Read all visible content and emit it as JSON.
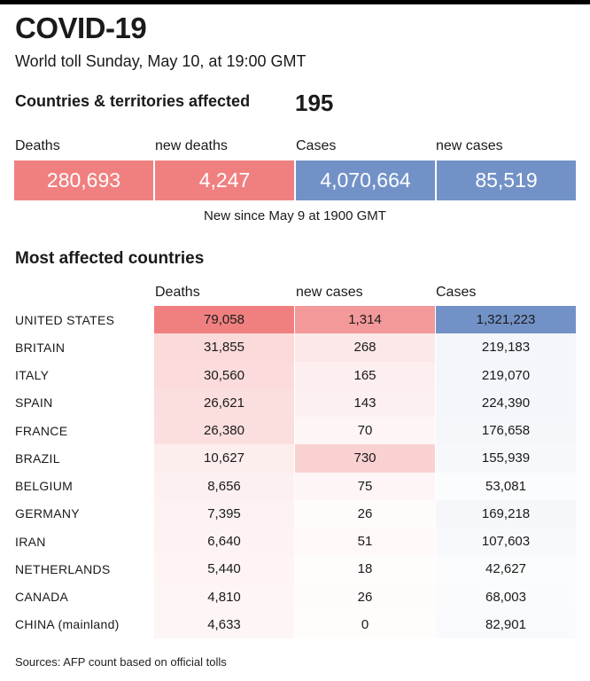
{
  "header": {
    "title": "COVID-19",
    "subtitle": "World toll Sunday, May 10, at 19:00 GMT"
  },
  "affected": {
    "label": "Countries & territories affected",
    "value": "195"
  },
  "stats": [
    {
      "label": "Deaths",
      "value": "280,693",
      "color": "#f08080"
    },
    {
      "label": "new deaths",
      "value": "4,247",
      "color": "#f08080"
    },
    {
      "label": "Cases",
      "value": "4,070,664",
      "color": "#7292c7"
    },
    {
      "label": "new cases",
      "value": "85,519",
      "color": "#7292c7"
    }
  ],
  "stats_note": "New since  May 9 at 1900 GMT",
  "section_title": "Most affected countries",
  "table": {
    "columns": [
      "Deaths",
      "new cases",
      "Cases"
    ],
    "rows": [
      {
        "country": "UNITED STATES",
        "deaths": "79,058",
        "new_cases": "1,314",
        "cases": "1,321,223"
      },
      {
        "country": "BRITAIN",
        "deaths": "31,855",
        "new_cases": "268",
        "cases": "219,183"
      },
      {
        "country": "ITALY",
        "deaths": "30,560",
        "new_cases": "165",
        "cases": "219,070"
      },
      {
        "country": "SPAIN",
        "deaths": "26,621",
        "new_cases": "143",
        "cases": "224,390"
      },
      {
        "country": "FRANCE",
        "deaths": "26,380",
        "new_cases": "70",
        "cases": "176,658"
      },
      {
        "country": "BRAZIL",
        "deaths": "10,627",
        "new_cases": "730",
        "cases": "155,939"
      },
      {
        "country": "BELGIUM",
        "deaths": "8,656",
        "new_cases": "75",
        "cases": "53,081"
      },
      {
        "country": "GERMANY",
        "deaths": "7,395",
        "new_cases": "26",
        "cases": "169,218"
      },
      {
        "country": "IRAN",
        "deaths": "6,640",
        "new_cases": "51",
        "cases": "107,603"
      },
      {
        "country": "NETHERLANDS",
        "deaths": "5,440",
        "new_cases": "18",
        "cases": "42,627"
      },
      {
        "country": "CANADA",
        "deaths": "4,810",
        "new_cases": "26",
        "cases": "68,003"
      },
      {
        "country": "CHINA (mainland)",
        "deaths": "4,633",
        "new_cases": "0",
        "cases": "82,901"
      }
    ]
  },
  "colors": {
    "deaths_max": "#f08080",
    "new_cases_max": "#f08080",
    "cases_max": "#7292c7"
  },
  "source": "Sources: AFP count based on official tolls"
}
